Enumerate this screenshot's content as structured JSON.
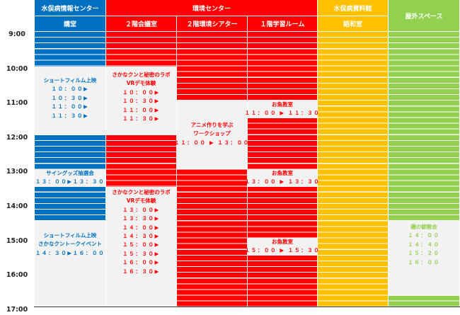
{
  "headers": {
    "venue1": "水俣病情報センター",
    "venue2": "環境センター",
    "venue3": "水俣病資料館",
    "venue4": "屋外スペース",
    "room1": "講堂",
    "room2": "２階会議室",
    "room3": "２階環境シアター",
    "room4": "１階学習ルーム",
    "room5": "語和室"
  },
  "times": [
    "9:00",
    "10:00",
    "11:00",
    "12:00",
    "13:00",
    "14:00",
    "15:00",
    "16:00",
    "17:00"
  ],
  "colors": {
    "blue": "#0070c0",
    "red": "#ff0000",
    "yellow": "#ffc000",
    "green": "#92d050",
    "event_bg": "#f2f2f2"
  },
  "events": {
    "e1": {
      "title": "ショートフィルム上映",
      "slots": [
        "１０：００▶",
        "１０：３０▶",
        "１１：００▶",
        "１１：３０▶"
      ]
    },
    "e2": {
      "title1": "さかなクンと秘密のラボ",
      "title2": "VRデモ体験",
      "slots": [
        "１０：００▶",
        "１０：３０▶",
        "１１：００▶",
        "１１：３０▶"
      ]
    },
    "e3": {
      "title1": "アニメ作りを学ぶ",
      "title2": "ワークショップ",
      "slots": [
        "１１：００ ▶ １３：００"
      ]
    },
    "e4": {
      "title": "お魚教室",
      "slots": [
        "１１：００ ▶ １１：３０"
      ]
    },
    "e5": {
      "title": "サイングッズ抽選会",
      "slots": [
        "１３：００▶１３：３０"
      ]
    },
    "e6": {
      "title": "お魚教室",
      "slots": [
        "１３：００ ▶ １３：３０"
      ]
    },
    "e7": {
      "title1": "さかなクンと秘密のラボ",
      "title2": "VRデモ体験",
      "slots": [
        "１３：００▶",
        "１３：３０▶",
        "１４：００▶",
        "１４：３０▶",
        "１５：００▶",
        "１５：３０▶",
        "１６：００▶",
        "１６：３０▶"
      ]
    },
    "e8": {
      "title": "お魚教室",
      "slots": [
        "１５：００ ▶ １５：３０"
      ]
    },
    "e9": {
      "title1": "ショートフィルム上映",
      "title2": "さかなクントークイベント",
      "slots": [
        "１４：３０▶１６：００"
      ]
    },
    "e10": {
      "title": "磯の観察会",
      "slots": [
        "１４：００",
        "１４：４０",
        "１５：２０",
        "１６：００"
      ]
    }
  }
}
